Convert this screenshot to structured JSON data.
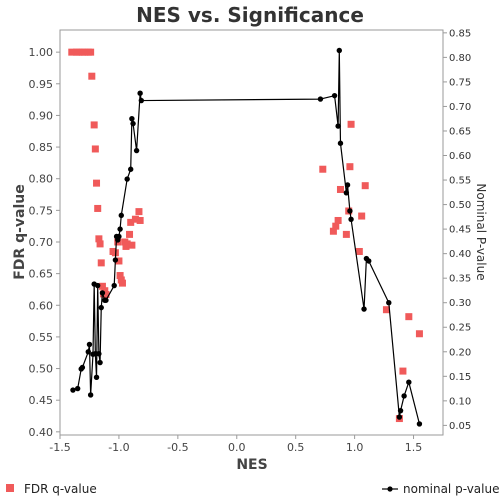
{
  "chart_data": {
    "type": "scatter",
    "title": "NES vs. Significance",
    "xlabel": "NES",
    "ylabel": "FDR q-value",
    "y2label": "Nominal P-value",
    "xlim": [
      -1.5,
      1.75
    ],
    "ylim": [
      0.395,
      1.035
    ],
    "y2lim": [
      0.0304,
      0.8558
    ],
    "x_ticks": [
      -1.5,
      -1.0,
      -0.5,
      0.0,
      0.5,
      1.0,
      1.5
    ],
    "x_tick_labels": [
      "-1.5",
      "-1.0",
      "-0.5",
      "0.0",
      "0.5",
      "1.0",
      "1.5"
    ],
    "y_ticks": [
      0.4,
      0.45,
      0.5,
      0.55,
      0.6,
      0.65,
      0.7,
      0.75,
      0.8,
      0.85,
      0.9,
      0.95,
      1.0
    ],
    "y_tick_labels": [
      "0.40",
      "0.45",
      "0.50",
      "0.55",
      "0.60",
      "0.65",
      "0.70",
      "0.75",
      "0.80",
      "0.85",
      "0.90",
      "0.95",
      "1.00"
    ],
    "y2_ticks": [
      0.05,
      0.1,
      0.15,
      0.2,
      0.25,
      0.3,
      0.35,
      0.4,
      0.45,
      0.5,
      0.55,
      0.6,
      0.65,
      0.7,
      0.75,
      0.8,
      0.85
    ],
    "y2_tick_labels": [
      "0.05",
      "0.10",
      "0.15",
      "0.20",
      "0.25",
      "0.30",
      "0.35",
      "0.40",
      "0.45",
      "0.50",
      "0.55",
      "0.60",
      "0.65",
      "0.70",
      "0.75",
      "0.80",
      "0.85"
    ],
    "grid": false,
    "legend_position": "bottom",
    "series": [
      {
        "name": "FDR q-value",
        "axis": "left",
        "style": "markers",
        "color": "#f05a5a",
        "points": [
          [
            -1.4,
            1.0
          ],
          [
            -1.36,
            1.0
          ],
          [
            -1.34,
            1.0
          ],
          [
            -1.31,
            1.0
          ],
          [
            -1.29,
            1.0
          ],
          [
            -1.26,
            1.0
          ],
          [
            -1.24,
            1.0
          ],
          [
            -1.23,
            0.962
          ],
          [
            -1.21,
            0.885
          ],
          [
            -1.2,
            0.847
          ],
          [
            -1.19,
            0.793
          ],
          [
            -1.18,
            0.753
          ],
          [
            -1.17,
            0.705
          ],
          [
            -1.16,
            0.697
          ],
          [
            -1.15,
            0.667
          ],
          [
            -1.14,
            0.63
          ],
          [
            -1.13,
            0.618
          ],
          [
            -1.12,
            0.623
          ],
          [
            -1.11,
            0.617
          ],
          [
            -1.05,
            0.685
          ],
          [
            -1.03,
            0.683
          ],
          [
            -1.01,
            0.7
          ],
          [
            -1.0,
            0.67
          ],
          [
            -0.99,
            0.647
          ],
          [
            -0.98,
            0.64
          ],
          [
            -0.97,
            0.635
          ],
          [
            -0.95,
            0.7
          ],
          [
            -0.94,
            0.693
          ],
          [
            -0.93,
            0.697
          ],
          [
            -0.91,
            0.712
          ],
          [
            -0.9,
            0.731
          ],
          [
            -0.89,
            0.695
          ],
          [
            -0.86,
            0.736
          ],
          [
            -0.83,
            0.748
          ],
          [
            -0.82,
            0.734
          ],
          [
            0.73,
            0.815
          ],
          [
            0.82,
            0.717
          ],
          [
            0.84,
            0.725
          ],
          [
            0.86,
            0.734
          ],
          [
            0.88,
            0.783
          ],
          [
            0.93,
            0.712
          ],
          [
            0.95,
            0.749
          ],
          [
            0.96,
            0.819
          ],
          [
            0.97,
            0.886
          ],
          [
            1.04,
            0.685
          ],
          [
            1.06,
            0.741
          ],
          [
            1.09,
            0.789
          ],
          [
            1.27,
            0.593
          ],
          [
            1.38,
            0.421
          ],
          [
            1.41,
            0.496
          ],
          [
            1.46,
            0.582
          ],
          [
            1.55,
            0.555
          ]
        ]
      },
      {
        "name": "nominal p-value",
        "axis": "right",
        "style": "line-markers",
        "color": "#000000",
        "points": [
          [
            -1.39,
            0.122
          ],
          [
            -1.35,
            0.125
          ],
          [
            -1.32,
            0.165
          ],
          [
            -1.31,
            0.168
          ],
          [
            -1.26,
            0.2
          ],
          [
            -1.25,
            0.215
          ],
          [
            -1.24,
            0.112
          ],
          [
            -1.22,
            0.195
          ],
          [
            -1.21,
            0.338
          ],
          [
            -1.2,
            0.196
          ],
          [
            -1.19,
            0.148
          ],
          [
            -1.18,
            0.335
          ],
          [
            -1.17,
            0.196
          ],
          [
            -1.16,
            0.178
          ],
          [
            -1.15,
            0.29
          ],
          [
            -1.14,
            0.32
          ],
          [
            -1.12,
            0.305
          ],
          [
            -1.11,
            0.305
          ],
          [
            -1.04,
            0.335
          ],
          [
            -1.03,
            0.387
          ],
          [
            -1.02,
            0.435
          ],
          [
            -1.01,
            0.428
          ],
          [
            -1.0,
            0.435
          ],
          [
            -0.99,
            0.45
          ],
          [
            -0.98,
            0.478
          ],
          [
            -0.93,
            0.552
          ],
          [
            -0.9,
            0.572
          ],
          [
            -0.89,
            0.675
          ],
          [
            -0.88,
            0.665
          ],
          [
            -0.85,
            0.61
          ],
          [
            -0.82,
            0.727
          ],
          [
            -0.81,
            0.712
          ],
          [
            0.71,
            0.715
          ],
          [
            0.83,
            0.722
          ],
          [
            0.86,
            0.66
          ],
          [
            0.87,
            0.814
          ],
          [
            0.88,
            0.625
          ],
          [
            0.93,
            0.524
          ],
          [
            0.94,
            0.54
          ],
          [
            0.96,
            0.487
          ],
          [
            0.97,
            0.47
          ],
          [
            1.08,
            0.287
          ],
          [
            1.1,
            0.39
          ],
          [
            1.12,
            0.385
          ],
          [
            1.29,
            0.3
          ],
          [
            1.38,
            0.067
          ],
          [
            1.39,
            0.08
          ],
          [
            1.42,
            0.11
          ],
          [
            1.46,
            0.138
          ],
          [
            1.55,
            0.053
          ]
        ]
      }
    ]
  }
}
